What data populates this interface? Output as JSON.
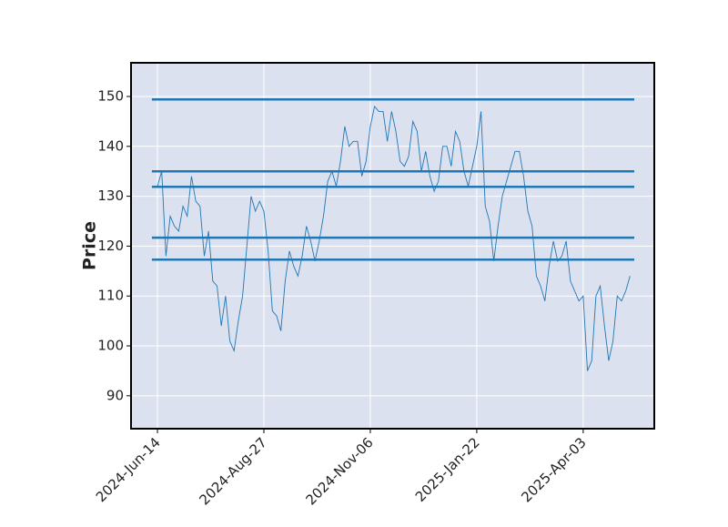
{
  "chart_data": {
    "type": "line",
    "y_label": "Price",
    "categories": [
      "2024-Jun-14",
      null,
      null,
      null,
      null,
      null,
      null,
      null,
      null,
      null,
      null,
      null,
      null,
      null,
      null,
      null,
      null,
      null,
      null,
      null,
      null,
      null,
      null,
      null,
      null,
      "2024-Aug-27",
      null,
      null,
      null,
      null,
      null,
      null,
      null,
      null,
      null,
      null,
      null,
      null,
      null,
      null,
      null,
      null,
      null,
      null,
      null,
      null,
      null,
      null,
      null,
      null,
      "2024-Nov-06",
      null,
      null,
      null,
      null,
      null,
      null,
      null,
      null,
      null,
      null,
      null,
      null,
      null,
      null,
      null,
      null,
      null,
      null,
      null,
      null,
      null,
      null,
      null,
      null,
      "2025-Jan-22",
      null,
      null,
      null,
      null,
      null,
      null,
      null,
      null,
      null,
      null,
      null,
      null,
      null,
      null,
      null,
      null,
      null,
      null,
      null,
      null,
      null,
      null,
      null,
      null,
      "2025-Apr-03",
      null,
      null,
      null,
      null,
      null,
      null,
      null,
      null,
      null,
      null,
      null
    ],
    "values": [
      132,
      135,
      118,
      126,
      124,
      123,
      128,
      126,
      134,
      129,
      128,
      118,
      123,
      113,
      112,
      104,
      110,
      101,
      99,
      105,
      110,
      120,
      130,
      127,
      129,
      127,
      119,
      107,
      106,
      103,
      113,
      119,
      116,
      114,
      118,
      124,
      121,
      117,
      121,
      126,
      133,
      135,
      132,
      137,
      144,
      140,
      141,
      141,
      134,
      137,
      144,
      148,
      147,
      147,
      141,
      147,
      143,
      137,
      136,
      138,
      145,
      143,
      135,
      139,
      134,
      131,
      133,
      140,
      140,
      136,
      143,
      141,
      135,
      132,
      136,
      140,
      147,
      128,
      125,
      117,
      124,
      130,
      133,
      136,
      139,
      139,
      134,
      127,
      124,
      114,
      112,
      109,
      116,
      121,
      117,
      118,
      121,
      113,
      111,
      109,
      110,
      95,
      97,
      110,
      112,
      104,
      97,
      101,
      110,
      109,
      111,
      114
    ],
    "color": "#1f77b4",
    "hlines": [
      149.4,
      135.0,
      131.9,
      121.7,
      117.3
    ],
    "hline_color": "#1f77b4",
    "ylim": [
      83.4,
      156.75
    ],
    "yticks": [
      90,
      100,
      110,
      120,
      130,
      140,
      150
    ],
    "grid": true
  }
}
